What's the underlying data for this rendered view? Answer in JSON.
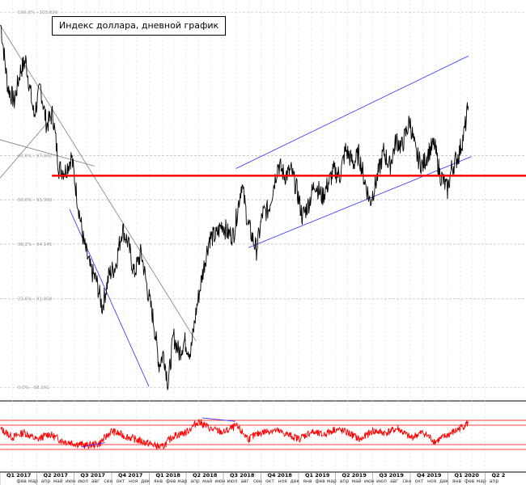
{
  "chart_data": {
    "type": "line",
    "title": "Индекс доллара, дневной график",
    "fib_levels": [
      {
        "label": "100,0% - 103,826",
        "value": 103.826
      },
      {
        "label": "61,8% - 97,842",
        "value": 97.842
      },
      {
        "label": "50,0% - 95,993",
        "value": 95.993
      },
      {
        "label": "38,2% - 94,145",
        "value": 94.145
      },
      {
        "label": "23,6% - 91,858",
        "value": 91.858
      },
      {
        "label": "0,0% - 88,161",
        "value": 88.161
      }
    ],
    "ylim": [
      88.0,
      104.0
    ],
    "resistance_level": 97.0,
    "price_series": [
      {
        "x": "2017-01-03",
        "y": 103.3
      },
      {
        "x": "2017-01-20",
        "y": 100.7
      },
      {
        "x": "2017-02-05",
        "y": 100.1
      },
      {
        "x": "2017-02-20",
        "y": 101.4
      },
      {
        "x": "2017-03-05",
        "y": 101.8
      },
      {
        "x": "2017-03-25",
        "y": 99.5
      },
      {
        "x": "2017-04-10",
        "y": 100.7
      },
      {
        "x": "2017-04-25",
        "y": 99.1
      },
      {
        "x": "2017-05-10",
        "y": 99.6
      },
      {
        "x": "2017-05-25",
        "y": 97.3
      },
      {
        "x": "2017-06-10",
        "y": 97.2
      },
      {
        "x": "2017-06-25",
        "y": 97.8
      },
      {
        "x": "2017-07-10",
        "y": 95.9
      },
      {
        "x": "2017-07-25",
        "y": 94.2
      },
      {
        "x": "2017-08-10",
        "y": 93.1
      },
      {
        "x": "2017-08-25",
        "y": 92.6
      },
      {
        "x": "2017-09-08",
        "y": 91.5
      },
      {
        "x": "2017-09-25",
        "y": 92.9
      },
      {
        "x": "2017-10-10",
        "y": 93.2
      },
      {
        "x": "2017-10-27",
        "y": 94.8
      },
      {
        "x": "2017-11-10",
        "y": 94.2
      },
      {
        "x": "2017-11-25",
        "y": 92.9
      },
      {
        "x": "2017-12-12",
        "y": 93.8
      },
      {
        "x": "2017-12-28",
        "y": 92.2
      },
      {
        "x": "2018-01-12",
        "y": 90.9
      },
      {
        "x": "2018-01-25",
        "y": 89.1
      },
      {
        "x": "2018-02-05",
        "y": 89.6
      },
      {
        "x": "2018-02-16",
        "y": 88.3
      },
      {
        "x": "2018-03-01",
        "y": 90.3
      },
      {
        "x": "2018-03-15",
        "y": 89.6
      },
      {
        "x": "2018-03-28",
        "y": 90.1
      },
      {
        "x": "2018-04-12",
        "y": 89.6
      },
      {
        "x": "2018-04-26",
        "y": 91.4
      },
      {
        "x": "2018-05-10",
        "y": 92.8
      },
      {
        "x": "2018-05-28",
        "y": 94.4
      },
      {
        "x": "2018-06-14",
        "y": 94.5
      },
      {
        "x": "2018-06-28",
        "y": 95.0
      },
      {
        "x": "2018-07-12",
        "y": 94.6
      },
      {
        "x": "2018-07-26",
        "y": 94.5
      },
      {
        "x": "2018-08-15",
        "y": 96.7
      },
      {
        "x": "2018-08-30",
        "y": 95.0
      },
      {
        "x": "2018-09-20",
        "y": 93.9
      },
      {
        "x": "2018-10-05",
        "y": 95.4
      },
      {
        "x": "2018-10-20",
        "y": 95.6
      },
      {
        "x": "2018-11-12",
        "y": 97.5
      },
      {
        "x": "2018-11-28",
        "y": 97.0
      },
      {
        "x": "2018-12-14",
        "y": 97.2
      },
      {
        "x": "2018-12-28",
        "y": 96.4
      },
      {
        "x": "2019-01-10",
        "y": 95.3
      },
      {
        "x": "2019-01-25",
        "y": 95.8
      },
      {
        "x": "2019-02-10",
        "y": 96.7
      },
      {
        "x": "2019-02-28",
        "y": 96.1
      },
      {
        "x": "2019-03-15",
        "y": 96.7
      },
      {
        "x": "2019-03-28",
        "y": 97.2
      },
      {
        "x": "2019-04-12",
        "y": 97.0
      },
      {
        "x": "2019-04-26",
        "y": 98.1
      },
      {
        "x": "2019-05-15",
        "y": 97.5
      },
      {
        "x": "2019-05-28",
        "y": 97.9
      },
      {
        "x": "2019-06-10",
        "y": 96.9
      },
      {
        "x": "2019-06-25",
        "y": 95.9
      },
      {
        "x": "2019-07-12",
        "y": 96.9
      },
      {
        "x": "2019-07-28",
        "y": 98.0
      },
      {
        "x": "2019-08-12",
        "y": 97.4
      },
      {
        "x": "2019-08-28",
        "y": 98.5
      },
      {
        "x": "2019-09-10",
        "y": 98.2
      },
      {
        "x": "2019-09-30",
        "y": 99.3
      },
      {
        "x": "2019-10-15",
        "y": 97.9
      },
      {
        "x": "2019-10-31",
        "y": 97.4
      },
      {
        "x": "2019-11-15",
        "y": 98.0
      },
      {
        "x": "2019-11-29",
        "y": 98.3
      },
      {
        "x": "2019-12-12",
        "y": 97.1
      },
      {
        "x": "2019-12-31",
        "y": 96.4
      },
      {
        "x": "2020-01-10",
        "y": 97.3
      },
      {
        "x": "2020-01-28",
        "y": 97.9
      },
      {
        "x": "2020-02-10",
        "y": 98.8
      },
      {
        "x": "2020-02-20",
        "y": 99.9
      }
    ],
    "oscillator_series": [
      {
        "x": "2017-01-03",
        "y": 62
      },
      {
        "x": "2017-02-01",
        "y": 45
      },
      {
        "x": "2017-03-01",
        "y": 55
      },
      {
        "x": "2017-04-01",
        "y": 40
      },
      {
        "x": "2017-05-01",
        "y": 52
      },
      {
        "x": "2017-06-01",
        "y": 38
      },
      {
        "x": "2017-07-01",
        "y": 33
      },
      {
        "x": "2017-08-01",
        "y": 28
      },
      {
        "x": "2017-09-01",
        "y": 32
      },
      {
        "x": "2017-10-01",
        "y": 58
      },
      {
        "x": "2017-11-01",
        "y": 48
      },
      {
        "x": "2017-12-01",
        "y": 40
      },
      {
        "x": "2018-01-01",
        "y": 32
      },
      {
        "x": "2018-02-01",
        "y": 24
      },
      {
        "x": "2018-03-01",
        "y": 48
      },
      {
        "x": "2018-04-01",
        "y": 55
      },
      {
        "x": "2018-05-01",
        "y": 78
      },
      {
        "x": "2018-06-01",
        "y": 62
      },
      {
        "x": "2018-07-01",
        "y": 55
      },
      {
        "x": "2018-08-01",
        "y": 68
      },
      {
        "x": "2018-09-01",
        "y": 42
      },
      {
        "x": "2018-10-01",
        "y": 55
      },
      {
        "x": "2018-11-01",
        "y": 60
      },
      {
        "x": "2018-12-01",
        "y": 52
      },
      {
        "x": "2019-01-01",
        "y": 42
      },
      {
        "x": "2019-02-01",
        "y": 56
      },
      {
        "x": "2019-03-01",
        "y": 50
      },
      {
        "x": "2019-04-01",
        "y": 62
      },
      {
        "x": "2019-05-01",
        "y": 55
      },
      {
        "x": "2019-06-01",
        "y": 40
      },
      {
        "x": "2019-07-01",
        "y": 58
      },
      {
        "x": "2019-08-01",
        "y": 54
      },
      {
        "x": "2019-09-01",
        "y": 63
      },
      {
        "x": "2019-10-01",
        "y": 44
      },
      {
        "x": "2019-11-01",
        "y": 55
      },
      {
        "x": "2019-12-01",
        "y": 36
      },
      {
        "x": "2020-01-01",
        "y": 50
      },
      {
        "x": "2020-01-20",
        "y": 58
      },
      {
        "x": "2020-02-10",
        "y": 70
      },
      {
        "x": "2020-02-20",
        "y": 75
      }
    ],
    "oscillator_levels": [
      80,
      70,
      30,
      20
    ],
    "quarter_labels": [
      "Q1 2017",
      "Q2 2017",
      "Q3 2017",
      "Q4 2017",
      "Q1 2018",
      "Q2 2018",
      "Q3 2018",
      "Q4 2018",
      "Q1 2019",
      "Q2 2019",
      "Q3 2019",
      "Q4 2019",
      "Q1 2020",
      "Q2 2"
    ],
    "month_labels": [
      "фев",
      "мар",
      "апр",
      "май",
      "июн",
      "июл",
      "авг",
      "сен",
      "окт",
      "ноя",
      "дек",
      "янв",
      "фев",
      "мар",
      "апр",
      "май",
      "июн",
      "июл",
      "авг",
      "сен",
      "окт",
      "ноя",
      "дек",
      "янв",
      "фев",
      "мар",
      "апр",
      "май",
      "июн",
      "июл",
      "авг",
      "сен",
      "окт",
      "ноя",
      "дек",
      "янв",
      "фев",
      "мар",
      "апр"
    ],
    "colors": {
      "price": "#000000",
      "osc": "#ff0000",
      "resistance": "#ff0000",
      "channel": "#3030ff",
      "trend": "#7f7f7f",
      "grid": "#d9d9d9",
      "fib_text": "#9a9a9a"
    }
  }
}
